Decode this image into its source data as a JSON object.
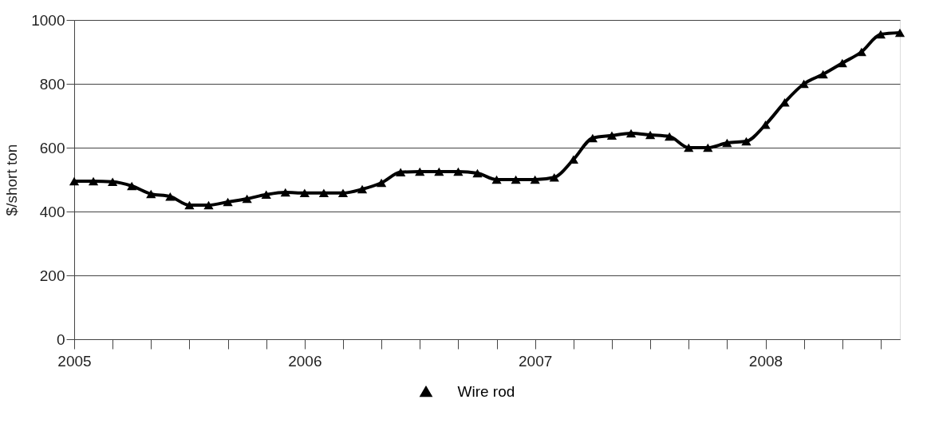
{
  "chart_data": {
    "type": "line",
    "ylabel": "$/short ton",
    "categories": [
      "2005",
      null,
      null,
      null,
      null,
      null,
      null,
      null,
      null,
      null,
      null,
      null,
      "2006",
      null,
      null,
      null,
      null,
      null,
      null,
      null,
      null,
      null,
      null,
      null,
      "2007",
      null,
      null,
      null,
      null,
      null,
      null,
      null,
      null,
      null,
      null,
      null,
      "2008",
      null,
      null,
      null,
      null,
      null,
      null,
      null
    ],
    "series": [
      {
        "name": "Wire rod",
        "color": "#000000",
        "values": [
          495,
          495,
          493,
          480,
          455,
          447,
          420,
          420,
          430,
          440,
          453,
          460,
          458,
          458,
          458,
          470,
          490,
          523,
          525,
          525,
          525,
          520,
          500,
          500,
          500,
          507,
          563,
          630,
          638,
          645,
          640,
          635,
          600,
          600,
          615,
          620,
          672,
          742,
          800,
          830,
          865,
          900,
          955,
          960
        ]
      }
    ],
    "ylim": [
      0,
      1000
    ],
    "yticks": [
      0,
      200,
      400,
      600,
      800,
      1000
    ],
    "grid": "y",
    "legend": "bottom",
    "marker": "triangle",
    "line_style": "solid"
  }
}
